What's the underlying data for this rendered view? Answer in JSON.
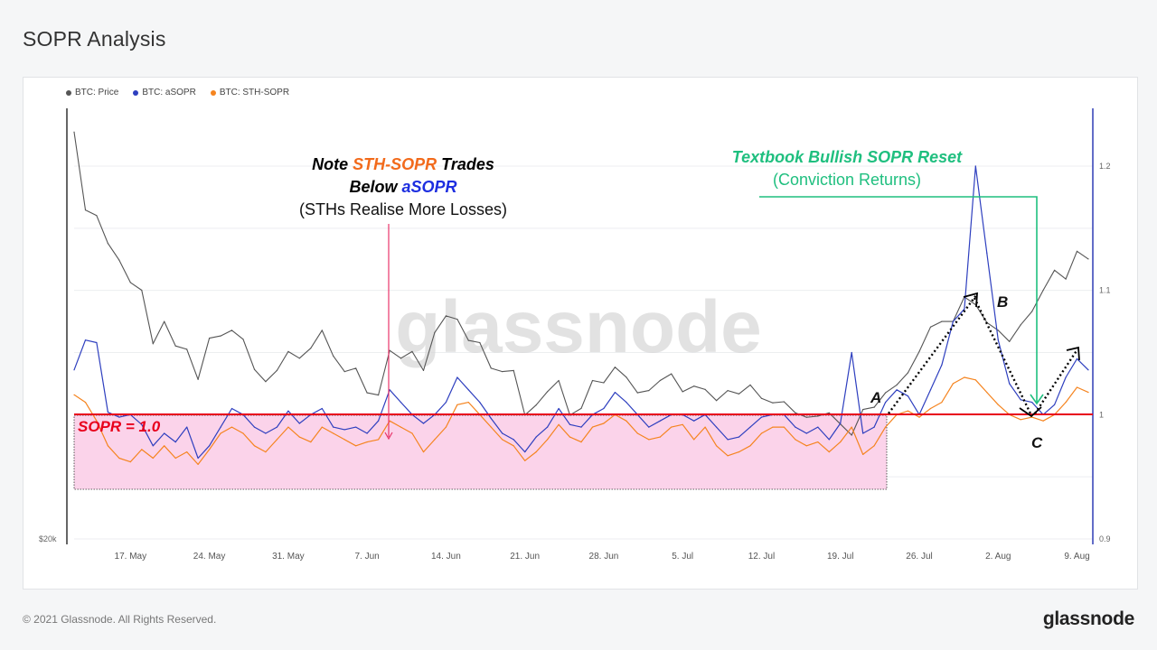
{
  "page": {
    "title": "SOPR Analysis",
    "copyright": "© 2021 Glassnode. All Rights Reserved.",
    "brand": "glassnode",
    "watermark": "glassnode"
  },
  "colors": {
    "price": "#555555",
    "asopr": "#2e3fbf",
    "sth": "#f5841f",
    "sopr_line": "#e8001c",
    "zone_fill": "#fbd3ea",
    "green": "#1fbf7f",
    "red_arrow": "#e8356a",
    "right_axis": "#2f3db5"
  },
  "chart_data": {
    "type": "line",
    "title": "",
    "legend": [
      "BTC: Price",
      "BTC: aSOPR",
      "BTC: STH-SOPR"
    ],
    "legend_position": "top-left",
    "x_ticks": [
      "17. May",
      "24. May",
      "31. May",
      "7. Jun",
      "14. Jun",
      "21. Jun",
      "28. Jun",
      "5. Jul",
      "12. Jul",
      "19. Jul",
      "26. Jul",
      "2. Aug",
      "9. Aug"
    ],
    "left_axis_label": "$20k",
    "right_axis_ticks": [
      "1.2",
      "1.1",
      "1",
      "0.9"
    ],
    "right_ylim": [
      0.9,
      1.2
    ],
    "series": [
      {
        "name": "BTC: Price",
        "axis": "left",
        "x": [
          "2021-05-12",
          "2021-05-13",
          "2021-05-14",
          "2021-05-15",
          "2021-05-16",
          "2021-05-17",
          "2021-05-18",
          "2021-05-19",
          "2021-05-20",
          "2021-05-21",
          "2021-05-22",
          "2021-05-23",
          "2021-05-24",
          "2021-05-25",
          "2021-05-26",
          "2021-05-27",
          "2021-05-28",
          "2021-05-29",
          "2021-05-30",
          "2021-05-31",
          "2021-06-01",
          "2021-06-02",
          "2021-06-03",
          "2021-06-04",
          "2021-06-05",
          "2021-06-06",
          "2021-06-07",
          "2021-06-08",
          "2021-06-09",
          "2021-06-10",
          "2021-06-11",
          "2021-06-12",
          "2021-06-13",
          "2021-06-14",
          "2021-06-15",
          "2021-06-16",
          "2021-06-17",
          "2021-06-18",
          "2021-06-19",
          "2021-06-20",
          "2021-06-21",
          "2021-06-22",
          "2021-06-23",
          "2021-06-24",
          "2021-06-25",
          "2021-06-26",
          "2021-06-27",
          "2021-06-28",
          "2021-06-29",
          "2021-06-30",
          "2021-07-01",
          "2021-07-02",
          "2021-07-03",
          "2021-07-04",
          "2021-07-05",
          "2021-07-06",
          "2021-07-07",
          "2021-07-08",
          "2021-07-09",
          "2021-07-10",
          "2021-07-11",
          "2021-07-12",
          "2021-07-13",
          "2021-07-14",
          "2021-07-15",
          "2021-07-16",
          "2021-07-17",
          "2021-07-18",
          "2021-07-19",
          "2021-07-20",
          "2021-07-21",
          "2021-07-22",
          "2021-07-23",
          "2021-07-24",
          "2021-07-25",
          "2021-07-26",
          "2021-07-27",
          "2021-07-28",
          "2021-07-29",
          "2021-07-30",
          "2021-07-31",
          "2021-08-01",
          "2021-08-02",
          "2021-08-03",
          "2021-08-04",
          "2021-08-05",
          "2021-08-06",
          "2021-08-07",
          "2021-08-08",
          "2021-08-09",
          "2021-08-10"
        ],
        "values": [
          57000,
          50000,
          49500,
          47000,
          45500,
          43500,
          42800,
          38000,
          40000,
          37800,
          37500,
          34800,
          38500,
          38700,
          39200,
          38400,
          35700,
          34600,
          35600,
          37300,
          36700,
          37600,
          39200,
          36900,
          35500,
          35800,
          33600,
          33400,
          37400,
          36700,
          37300,
          35600,
          39000,
          40500,
          40200,
          38300,
          38100,
          35800,
          35500,
          35600,
          31600,
          32500,
          33700,
          34700,
          31600,
          32200,
          34700,
          34500,
          35900,
          35000,
          33600,
          33800,
          34700,
          35300,
          33700,
          34200,
          33900,
          32900,
          33800,
          33500,
          34300,
          33100,
          32700,
          32800,
          31800,
          31400,
          31500,
          31800,
          30800,
          29800,
          32100,
          32300,
          33600,
          34300,
          35400,
          37300,
          39500,
          40000,
          40000,
          42200,
          41500,
          39900,
          39200,
          38200,
          39700,
          40900,
          42800,
          44600,
          43800,
          46300,
          45600
        ]
      },
      {
        "name": "BTC: aSOPR",
        "axis": "right",
        "x": [
          "2021-05-12",
          "2021-05-13",
          "2021-05-14",
          "2021-05-15",
          "2021-05-16",
          "2021-05-17",
          "2021-05-18",
          "2021-05-19",
          "2021-05-20",
          "2021-05-21",
          "2021-05-22",
          "2021-05-23",
          "2021-05-24",
          "2021-05-25",
          "2021-05-26",
          "2021-05-27",
          "2021-05-28",
          "2021-05-29",
          "2021-05-30",
          "2021-05-31",
          "2021-06-01",
          "2021-06-02",
          "2021-06-03",
          "2021-06-04",
          "2021-06-05",
          "2021-06-06",
          "2021-06-07",
          "2021-06-08",
          "2021-06-09",
          "2021-06-10",
          "2021-06-11",
          "2021-06-12",
          "2021-06-13",
          "2021-06-14",
          "2021-06-15",
          "2021-06-16",
          "2021-06-17",
          "2021-06-18",
          "2021-06-19",
          "2021-06-20",
          "2021-06-21",
          "2021-06-22",
          "2021-06-23",
          "2021-06-24",
          "2021-06-25",
          "2021-06-26",
          "2021-06-27",
          "2021-06-28",
          "2021-06-29",
          "2021-06-30",
          "2021-07-01",
          "2021-07-02",
          "2021-07-03",
          "2021-07-04",
          "2021-07-05",
          "2021-07-06",
          "2021-07-07",
          "2021-07-08",
          "2021-07-09",
          "2021-07-10",
          "2021-07-11",
          "2021-07-12",
          "2021-07-13",
          "2021-07-14",
          "2021-07-15",
          "2021-07-16",
          "2021-07-17",
          "2021-07-18",
          "2021-07-19",
          "2021-07-20",
          "2021-07-21",
          "2021-07-22",
          "2021-07-23",
          "2021-07-24",
          "2021-07-25",
          "2021-07-26",
          "2021-07-27",
          "2021-07-28",
          "2021-07-29",
          "2021-07-30",
          "2021-07-31",
          "2021-08-01",
          "2021-08-02",
          "2021-08-03",
          "2021-08-04",
          "2021-08-05",
          "2021-08-06",
          "2021-08-07",
          "2021-08-08",
          "2021-08-09",
          "2021-08-10"
        ],
        "values": [
          1.036,
          1.06,
          1.058,
          1.002,
          0.998,
          1.0,
          0.992,
          0.975,
          0.985,
          0.978,
          0.99,
          0.965,
          0.975,
          0.99,
          1.005,
          1.0,
          0.99,
          0.985,
          0.99,
          1.003,
          0.993,
          1.0,
          1.005,
          0.99,
          0.988,
          0.99,
          0.985,
          0.995,
          1.02,
          1.01,
          1.0,
          0.993,
          1.0,
          1.01,
          1.03,
          1.02,
          1.01,
          0.997,
          0.985,
          0.98,
          0.97,
          0.982,
          0.99,
          1.005,
          0.992,
          0.99,
          1.0,
          1.005,
          1.018,
          1.01,
          1.0,
          0.99,
          0.995,
          1.0,
          1.0,
          0.995,
          1.0,
          0.99,
          0.98,
          0.982,
          0.99,
          0.998,
          1.0,
          1.0,
          0.99,
          0.985,
          0.99,
          0.98,
          0.993,
          1.05,
          0.985,
          0.99,
          1.01,
          1.02,
          1.015,
          1.0,
          1.02,
          1.04,
          1.075,
          1.085,
          1.2,
          1.13,
          1.06,
          1.025,
          1.012,
          1.01,
          1.0,
          1.008,
          1.03,
          1.045,
          1.036
        ]
      },
      {
        "name": "BTC: STH-SOPR",
        "axis": "right",
        "x": [
          "2021-05-12",
          "2021-05-13",
          "2021-05-14",
          "2021-05-15",
          "2021-05-16",
          "2021-05-17",
          "2021-05-18",
          "2021-05-19",
          "2021-05-20",
          "2021-05-21",
          "2021-05-22",
          "2021-05-23",
          "2021-05-24",
          "2021-05-25",
          "2021-05-26",
          "2021-05-27",
          "2021-05-28",
          "2021-05-29",
          "2021-05-30",
          "2021-05-31",
          "2021-06-01",
          "2021-06-02",
          "2021-06-03",
          "2021-06-04",
          "2021-06-05",
          "2021-06-06",
          "2021-06-07",
          "2021-06-08",
          "2021-06-09",
          "2021-06-10",
          "2021-06-11",
          "2021-06-12",
          "2021-06-13",
          "2021-06-14",
          "2021-06-15",
          "2021-06-16",
          "2021-06-17",
          "2021-06-18",
          "2021-06-19",
          "2021-06-20",
          "2021-06-21",
          "2021-06-22",
          "2021-06-23",
          "2021-06-24",
          "2021-06-25",
          "2021-06-26",
          "2021-06-27",
          "2021-06-28",
          "2021-06-29",
          "2021-06-30",
          "2021-07-01",
          "2021-07-02",
          "2021-07-03",
          "2021-07-04",
          "2021-07-05",
          "2021-07-06",
          "2021-07-07",
          "2021-07-08",
          "2021-07-09",
          "2021-07-10",
          "2021-07-11",
          "2021-07-12",
          "2021-07-13",
          "2021-07-14",
          "2021-07-15",
          "2021-07-16",
          "2021-07-17",
          "2021-07-18",
          "2021-07-19",
          "2021-07-20",
          "2021-07-21",
          "2021-07-22",
          "2021-07-23",
          "2021-07-24",
          "2021-07-25",
          "2021-07-26",
          "2021-07-27",
          "2021-07-28",
          "2021-07-29",
          "2021-07-30",
          "2021-07-31",
          "2021-08-01",
          "2021-08-02",
          "2021-08-03",
          "2021-08-04",
          "2021-08-05",
          "2021-08-06",
          "2021-08-07",
          "2021-08-08",
          "2021-08-09",
          "2021-08-10"
        ],
        "values": [
          1.016,
          1.01,
          0.995,
          0.975,
          0.965,
          0.962,
          0.972,
          0.965,
          0.975,
          0.965,
          0.97,
          0.96,
          0.972,
          0.985,
          0.99,
          0.985,
          0.975,
          0.97,
          0.98,
          0.99,
          0.982,
          0.978,
          0.99,
          0.985,
          0.98,
          0.975,
          0.978,
          0.98,
          0.995,
          0.99,
          0.985,
          0.97,
          0.98,
          0.99,
          1.008,
          1.01,
          1.0,
          0.99,
          0.98,
          0.975,
          0.963,
          0.97,
          0.98,
          0.992,
          0.982,
          0.978,
          0.99,
          0.993,
          1.0,
          0.995,
          0.985,
          0.98,
          0.982,
          0.99,
          0.992,
          0.98,
          0.99,
          0.975,
          0.967,
          0.97,
          0.975,
          0.985,
          0.99,
          0.99,
          0.98,
          0.975,
          0.978,
          0.97,
          0.978,
          0.99,
          0.968,
          0.975,
          0.99,
          1.0,
          1.003,
          0.998,
          1.005,
          1.01,
          1.025,
          1.03,
          1.028,
          1.018,
          1.008,
          1.0,
          0.996,
          0.998,
          0.995,
          1.0,
          1.01,
          1.022,
          1.018
        ]
      }
    ],
    "reference_line": {
      "label": "SOPR = 1.0",
      "value": 1.0
    }
  },
  "annotations": {
    "note_word1": "Note",
    "note_word2": "STH-SOPR",
    "note_word3": "Trades",
    "note_line2a": "Below",
    "note_line2b": "aSOPR",
    "note_line3": "(STHs Realise More Losses)",
    "reset_title": "Textbook Bullish SOPR Reset",
    "reset_sub": "(Conviction Returns)",
    "pt_a": "A",
    "pt_b": "B",
    "pt_c": "C"
  }
}
